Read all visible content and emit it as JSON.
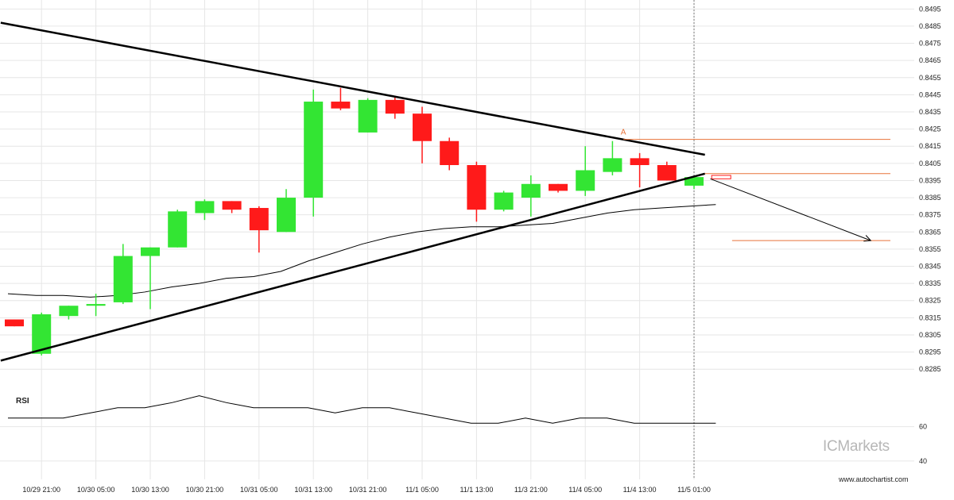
{
  "chart_data": {
    "type": "candlestick",
    "x_tick_labels": [
      "10/29 21:00",
      "10/30 05:00",
      "10/30 13:00",
      "10/30 21:00",
      "10/31 05:00",
      "10/31 13:00",
      "10/31 21:00",
      "11/1 05:00",
      "11/1 13:00",
      "11/3 21:00",
      "11/4 05:00",
      "11/4 13:00",
      "11/5 01:00"
    ],
    "y_tick_labels": [
      "0.8495",
      "0.8485",
      "0.8475",
      "0.8465",
      "0.8455",
      "0.8445",
      "0.8435",
      "0.8425",
      "0.8415",
      "0.8405",
      "0.8395",
      "0.8385",
      "0.8375",
      "0.8365",
      "0.8355",
      "0.8345",
      "0.8335",
      "0.8325",
      "0.8315",
      "0.8305",
      "0.8295",
      "0.8285"
    ],
    "ylim": [
      0.828,
      0.8497
    ],
    "colors": {
      "up": "#33e533",
      "down": "#ff1a1a",
      "pattern": "#000000",
      "annotation": "#e8733a"
    },
    "candles": [
      {
        "o": 0.8314,
        "h": 0.8314,
        "l": 0.831,
        "c": 0.831
      },
      {
        "o": 0.8294,
        "h": 0.8318,
        "l": 0.8293,
        "c": 0.8317
      },
      {
        "o": 0.8316,
        "h": 0.8322,
        "l": 0.8314,
        "c": 0.8322
      },
      {
        "o": 0.8322,
        "h": 0.8329,
        "l": 0.8316,
        "c": 0.8323
      },
      {
        "o": 0.8324,
        "h": 0.8358,
        "l": 0.8323,
        "c": 0.8351
      },
      {
        "o": 0.8351,
        "h": 0.8356,
        "l": 0.832,
        "c": 0.8356
      },
      {
        "o": 0.8356,
        "h": 0.8378,
        "l": 0.8356,
        "c": 0.8377
      },
      {
        "o": 0.8376,
        "h": 0.8384,
        "l": 0.8372,
        "c": 0.8383
      },
      {
        "o": 0.8383,
        "h": 0.8383,
        "l": 0.8376,
        "c": 0.8378
      },
      {
        "o": 0.8379,
        "h": 0.838,
        "l": 0.8353,
        "c": 0.8366
      },
      {
        "o": 0.8365,
        "h": 0.839,
        "l": 0.8365,
        "c": 0.8385
      },
      {
        "o": 0.8385,
        "h": 0.8448,
        "l": 0.8374,
        "c": 0.8441
      },
      {
        "o": 0.8441,
        "h": 0.8449,
        "l": 0.8436,
        "c": 0.8437
      },
      {
        "o": 0.8423,
        "h": 0.8443,
        "l": 0.8423,
        "c": 0.8442
      },
      {
        "o": 0.8442,
        "h": 0.8444,
        "l": 0.8431,
        "c": 0.8434
      },
      {
        "o": 0.8434,
        "h": 0.8438,
        "l": 0.8405,
        "c": 0.8418
      },
      {
        "o": 0.8418,
        "h": 0.842,
        "l": 0.8401,
        "c": 0.8404
      },
      {
        "o": 0.8404,
        "h": 0.8406,
        "l": 0.8371,
        "c": 0.8378
      },
      {
        "o": 0.8378,
        "h": 0.8389,
        "l": 0.8377,
        "c": 0.8388
      },
      {
        "o": 0.8385,
        "h": 0.8398,
        "l": 0.8374,
        "c": 0.8393
      },
      {
        "o": 0.8393,
        "h": 0.8393,
        "l": 0.8388,
        "c": 0.8389
      },
      {
        "o": 0.8389,
        "h": 0.8415,
        "l": 0.8386,
        "c": 0.8401
      },
      {
        "o": 0.84,
        "h": 0.8418,
        "l": 0.8398,
        "c": 0.8408
      },
      {
        "o": 0.8408,
        "h": 0.8411,
        "l": 0.8391,
        "c": 0.8404
      },
      {
        "o": 0.8404,
        "h": 0.8406,
        "l": 0.8395,
        "c": 0.8395
      },
      {
        "o": 0.8392,
        "h": 0.8397,
        "l": 0.839,
        "c": 0.8397
      }
    ],
    "moving_average": [
      0.8329,
      0.8328,
      0.8328,
      0.8327,
      0.8328,
      0.833,
      0.8333,
      0.8335,
      0.8338,
      0.8339,
      0.8342,
      0.8348,
      0.8353,
      0.8358,
      0.8362,
      0.8365,
      0.8367,
      0.8368,
      0.8368,
      0.8369,
      0.837,
      0.8373,
      0.8376,
      0.8378,
      0.8379,
      0.838,
      0.8381
    ],
    "resistance_line": {
      "from": [
        -0.5,
        0.8487
      ],
      "to": [
        25.4,
        0.841
      ]
    },
    "support_line": {
      "from": [
        -0.5,
        0.829
      ],
      "to": [
        25.4,
        0.8399
      ]
    },
    "current_bar": 25,
    "projection": {
      "from": [
        25.6,
        0.8396
      ],
      "to": [
        31.5,
        0.836
      ]
    },
    "levels": [
      {
        "value": 0.8419,
        "from_x": 22.4
      },
      {
        "value": 0.8399,
        "from_x": 25.4
      },
      {
        "value": 0.836,
        "from_x": 26.4
      }
    ],
    "pending_candle": {
      "x": 26.0,
      "o": 0.8398,
      "c": 0.8396
    },
    "point_label": {
      "text": "A",
      "x": 22.4,
      "y": 0.8421
    },
    "rsi": {
      "label": "RSI",
      "tick_labels": [
        "60",
        "40"
      ],
      "ylim": [
        33,
        82
      ],
      "values": [
        65,
        65,
        65,
        68,
        71,
        71,
        74,
        78,
        74,
        71,
        71,
        71,
        68,
        71,
        71,
        68,
        65,
        62,
        62,
        65,
        62,
        65,
        65,
        62,
        62,
        62,
        62
      ]
    }
  },
  "watermark": {
    "prefix": "IC",
    "text": "Markets"
  },
  "credit": "www.autochartist.com"
}
